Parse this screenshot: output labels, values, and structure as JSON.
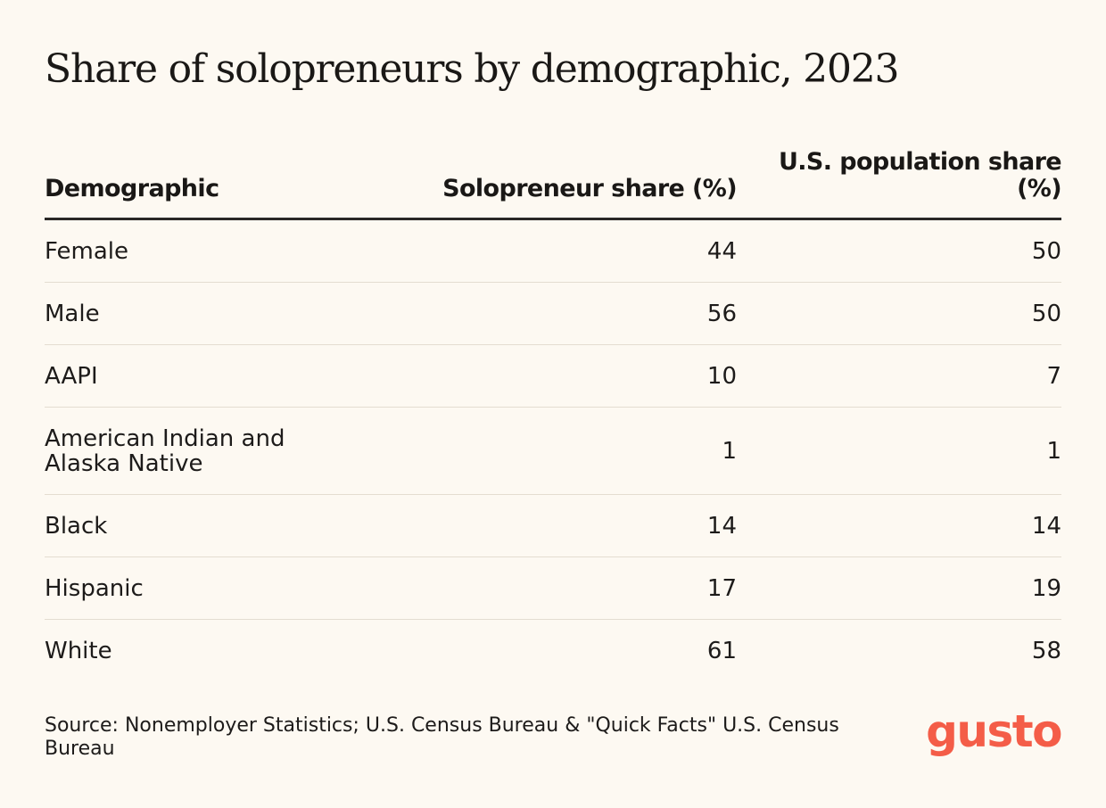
{
  "chart_data": {
    "type": "table",
    "title": "Share of solopreneurs by demographic, 2023",
    "columns": [
      "Demographic",
      "Solopreneur share (%)",
      "U.S. population share (%)"
    ],
    "rows": [
      {
        "demographic": "Female",
        "solopreneur_share": 44,
        "population_share": 50
      },
      {
        "demographic": "Male",
        "solopreneur_share": 56,
        "population_share": 50
      },
      {
        "demographic": "AAPI",
        "solopreneur_share": 10,
        "population_share": 7
      },
      {
        "demographic": "American Indian and Alaska Native",
        "solopreneur_share": 1,
        "population_share": 1
      },
      {
        "demographic": "Black",
        "solopreneur_share": 14,
        "population_share": 14
      },
      {
        "demographic": "Hispanic",
        "solopreneur_share": 17,
        "population_share": 19
      },
      {
        "demographic": "White",
        "solopreneur_share": 61,
        "population_share": 58
      }
    ],
    "source": "Source: Nonemployer Statistics; U.S. Census Bureau & \"Quick Facts\" U.S. Census Bureau"
  },
  "brand": {
    "logo_text": "gusto",
    "logo_color": "#f45d48"
  },
  "colors": {
    "background": "#fdf9f2",
    "text": "#1d1b1a",
    "rule": "#2a2826",
    "row_divider": "#e4ddd1"
  }
}
